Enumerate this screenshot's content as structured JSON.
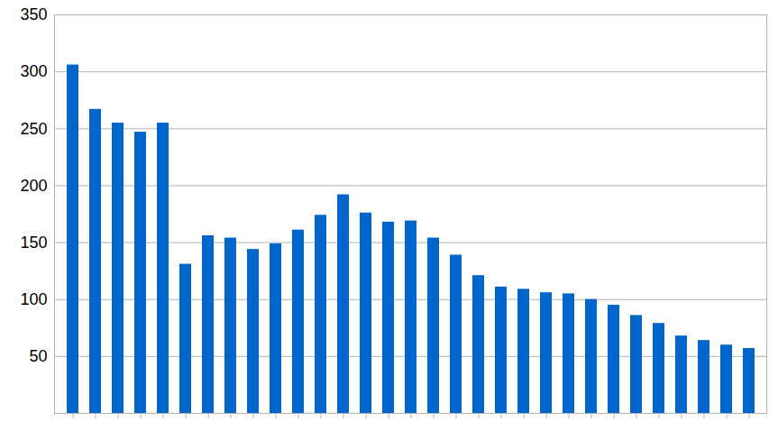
{
  "chart_data": {
    "type": "bar",
    "categories": [
      null,
      null,
      null,
      null,
      null,
      null,
      null,
      null,
      null,
      null,
      null,
      null,
      null,
      null,
      null,
      null,
      null,
      null,
      null,
      null,
      null,
      null,
      null,
      null,
      null,
      null,
      null,
      null,
      null,
      null,
      null
    ],
    "values": [
      306,
      267,
      255,
      247,
      255,
      131,
      156,
      154,
      144,
      149,
      161,
      174,
      192,
      176,
      168,
      169,
      154,
      139,
      121,
      111,
      109,
      106,
      105,
      100,
      95,
      86,
      79,
      68,
      64,
      60,
      57
    ],
    "color": "#0066cc",
    "ylim": [
      0,
      350
    ],
    "yticks": [
      50,
      100,
      150,
      200,
      250,
      300,
      350
    ],
    "grid": true
  }
}
